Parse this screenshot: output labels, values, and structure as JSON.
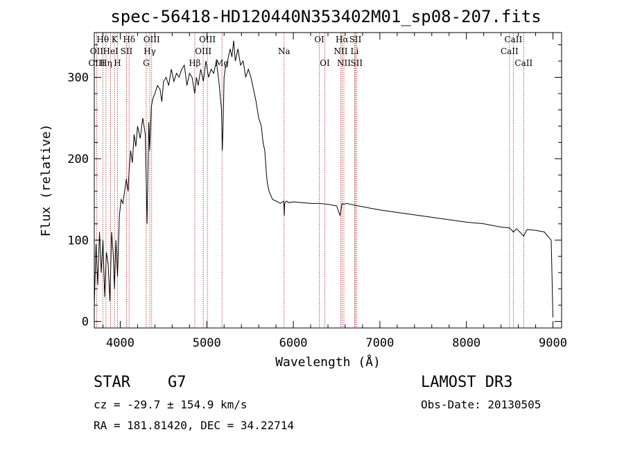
{
  "chart_data": {
    "type": "line",
    "title": "spec-56418-HD120440N353402M01_sp08-207.fits",
    "xlabel": "Wavelength (Å)",
    "ylabel": "Flux (relative)",
    "xlim": [
      3700,
      9100
    ],
    "ylim": [
      -8,
      355
    ],
    "x_ticks": [
      4000,
      5000,
      6000,
      7000,
      8000,
      9000
    ],
    "y_ticks": [
      0,
      100,
      200,
      300
    ],
    "series": [
      {
        "name": "spectrum",
        "x": [
          3700,
          3720,
          3740,
          3760,
          3780,
          3800,
          3820,
          3840,
          3860,
          3880,
          3900,
          3920,
          3933,
          3950,
          3968,
          3990,
          4010,
          4030,
          4050,
          4070,
          4090,
          4102,
          4120,
          4140,
          4160,
          4180,
          4200,
          4230,
          4260,
          4290,
          4310,
          4330,
          4340,
          4360,
          4380,
          4400,
          4430,
          4460,
          4480,
          4500,
          4530,
          4560,
          4590,
          4620,
          4650,
          4680,
          4710,
          4740,
          4770,
          4800,
          4830,
          4861,
          4880,
          4900,
          4930,
          4960,
          4990,
          5020,
          5050,
          5080,
          5110,
          5140,
          5170,
          5180,
          5190,
          5200,
          5220,
          5240,
          5270,
          5290,
          5310,
          5330,
          5360,
          5390,
          5420,
          5450,
          5480,
          5510,
          5540,
          5570,
          5600,
          5630,
          5650,
          5670,
          5690,
          5700,
          5720,
          5740,
          5760,
          5800,
          5850,
          5890,
          5895,
          5900,
          5920,
          5950,
          6000,
          6100,
          6200,
          6300,
          6400,
          6500,
          6540,
          6563,
          6580,
          6620,
          6700,
          6800,
          6900,
          7000,
          7200,
          7400,
          7600,
          7800,
          8000,
          8200,
          8400,
          8498,
          8542,
          8580,
          8662,
          8700,
          8800,
          8900,
          8980,
          9000
        ],
        "values": [
          20,
          95,
          45,
          110,
          60,
          100,
          30,
          85,
          70,
          25,
          110,
          80,
          40,
          100,
          55,
          130,
          150,
          145,
          160,
          175,
          160,
          185,
          210,
          195,
          230,
          215,
          240,
          225,
          250,
          230,
          120,
          245,
          210,
          265,
          275,
          280,
          290,
          285,
          270,
          295,
          300,
          290,
          310,
          295,
          305,
          300,
          310,
          315,
          290,
          305,
          300,
          280,
          300,
          290,
          310,
          295,
          320,
          300,
          310,
          305,
          320,
          295,
          260,
          210,
          250,
          300,
          315,
          320,
          335,
          325,
          345,
          320,
          335,
          315,
          320,
          300,
          310,
          300,
          285,
          270,
          250,
          240,
          220,
          210,
          180,
          170,
          160,
          155,
          150,
          148,
          145,
          148,
          130,
          145,
          148,
          146,
          147,
          146,
          145,
          145,
          144,
          142,
          130,
          145,
          144,
          145,
          143,
          141,
          139,
          137,
          134,
          131,
          128,
          125,
          122,
          120,
          116,
          115,
          110,
          114,
          105,
          113,
          112,
          110,
          100,
          5
        ]
      }
    ],
    "lines_row1": [
      {
        "label": "Hθ",
        "x": 3798
      },
      {
        "label": "K",
        "x": 3934
      },
      {
        "label": "Hδ",
        "x": 4102
      },
      {
        "label": "OIII",
        "x": 4363
      },
      {
        "label": "OIII",
        "x": 5007
      },
      {
        "label": "OI",
        "x": 6300
      },
      {
        "label": "Hα",
        "x": 6563
      },
      {
        "label": "SII",
        "x": 6717
      },
      {
        "label": "CaII",
        "x": 8542
      }
    ],
    "lines_row2": [
      {
        "label": "OII",
        "x": 3727
      },
      {
        "label": "HeI",
        "x": 3889
      },
      {
        "label": "SII",
        "x": 4072
      },
      {
        "label": "Hγ",
        "x": 4341
      },
      {
        "label": "OIII",
        "x": 4959
      },
      {
        "label": "Na",
        "x": 5893
      },
      {
        "label": "NII",
        "x": 6548
      },
      {
        "label": "Li",
        "x": 6708
      },
      {
        "label": "CaII",
        "x": 8498
      }
    ],
    "lines_row3": [
      {
        "label": "OIII",
        "x": 3727
      },
      {
        "label": "Hη",
        "x": 3835
      },
      {
        "label": "H",
        "x": 3968
      },
      {
        "label": "G",
        "x": 4300
      },
      {
        "label": "Hβ",
        "x": 4861
      },
      {
        "label": "Mg",
        "x": 5175
      },
      {
        "label": "OI",
        "x": 6364
      },
      {
        "label": "NII",
        "x": 6584
      },
      {
        "label": "SII",
        "x": 6731
      },
      {
        "label": "CaII",
        "x": 8662
      }
    ]
  },
  "info": {
    "class_label": "STAR",
    "subclass": "G7",
    "survey": "LAMOST DR3",
    "cz": "cz = -29.7 ± 154.9 km/s",
    "obs_date": "Obs-Date: 20130505",
    "radec": "RA = 181.81420, DEC =  34.22714"
  },
  "colors": {
    "line_marker": "#b22222",
    "spectrum": "#000000"
  }
}
